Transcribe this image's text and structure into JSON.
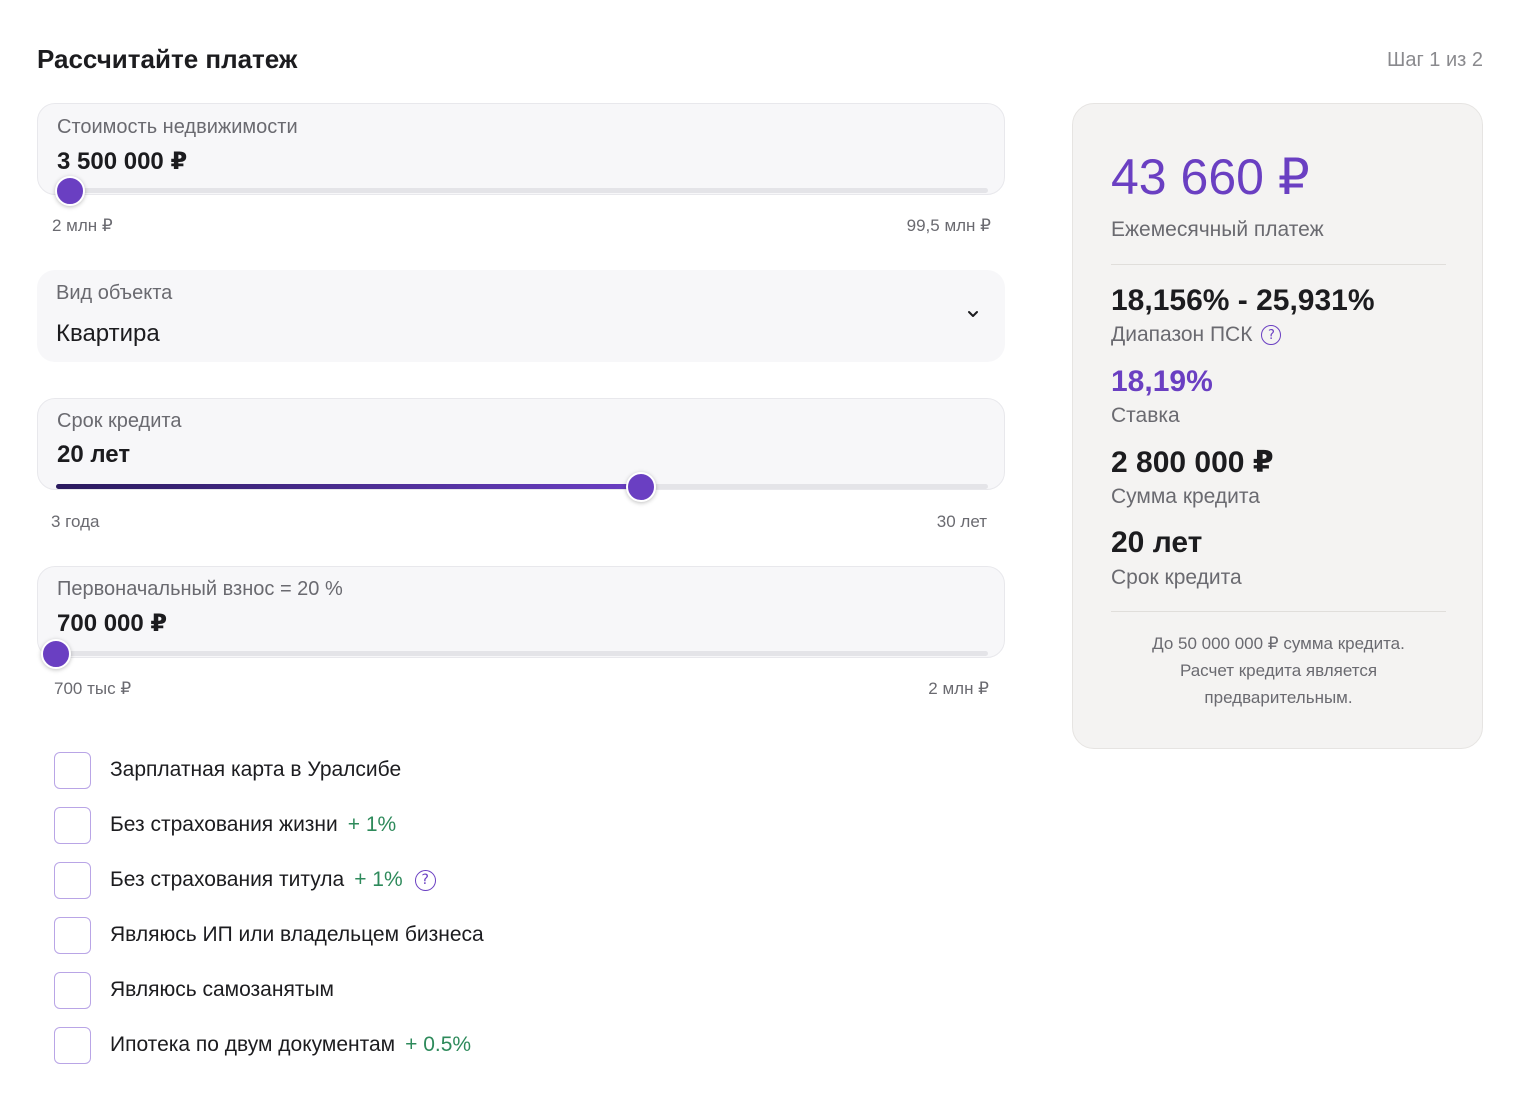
{
  "header": {
    "title": "Рассчитайте платеж",
    "step": "Шаг 1 из 2"
  },
  "property_cost": {
    "label": "Стоимость недвижимости",
    "value": "3 500 000 ₽",
    "min_label": "2 млн ₽",
    "max_label": "99,5 млн ₽",
    "slider_fraction": 0.015
  },
  "object_type": {
    "label": "Вид объекта",
    "selected": "Квартира",
    "icon": "chevron-down-icon"
  },
  "term": {
    "label": "Срок кредита",
    "value": "20 лет",
    "min_label": "3 года",
    "max_label": "30 лет",
    "slider_fraction": 0.63
  },
  "down_payment": {
    "label": "Первоначальный взнос = 20 %",
    "value": "700 000 ₽",
    "min_label": "700 тыс ₽",
    "max_label": "2 млн ₽",
    "slider_fraction": 0.0
  },
  "options": [
    {
      "label": "Зарплатная карта в Уралсибе",
      "extra": "",
      "help": false
    },
    {
      "label": "Без страхования жизни",
      "extra": "+ 1%",
      "help": false
    },
    {
      "label": "Без страхования титула",
      "extra": "+ 1%",
      "help": true
    },
    {
      "label": "Являюсь ИП или владельцем бизнеса",
      "extra": "",
      "help": false
    },
    {
      "label": "Являюсь самозанятым",
      "extra": "",
      "help": false
    },
    {
      "label": "Ипотека по двум документам",
      "extra": "+ 0.5%",
      "help": false
    }
  ],
  "summary": {
    "monthly_payment": "43 660 ₽",
    "monthly_payment_label": "Ежемесячный платеж",
    "psk_range": "18,156% - 25,931%",
    "psk_label": "Диапазон ПСК",
    "rate": "18,19%",
    "rate_label": "Ставка",
    "loan_amount": "2 800 000 ₽",
    "loan_amount_label": "Сумма кредита",
    "loan_term": "20 лет",
    "loan_term_label": "Срок кредита",
    "note_line1": "До 50 000 000 ₽ сумма кредита.",
    "note_line2": "Расчет кредита является",
    "note_line3": "предварительным."
  },
  "colors": {
    "accent": "#6a3fc2",
    "positive": "#2e8a5b",
    "card_bg": "#f4f3f2"
  }
}
